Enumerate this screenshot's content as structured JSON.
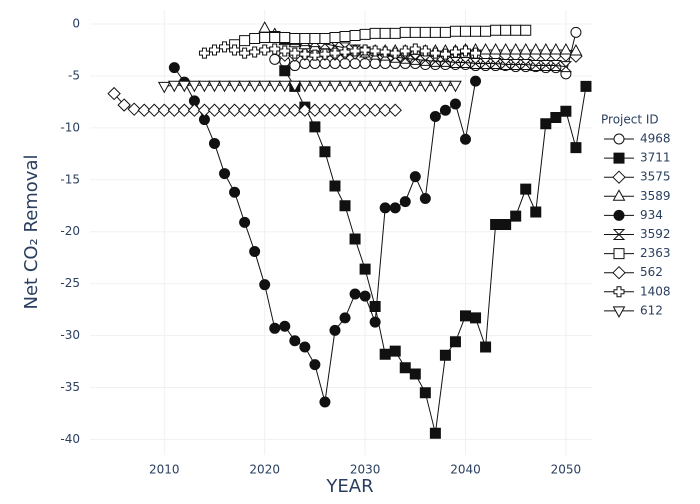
{
  "chart_data": {
    "type": "line",
    "xlabel": "YEAR",
    "ylabel": "Net CO₂ Removal",
    "legend_title": "Project ID",
    "xlim": [
      2002.6,
      2052.6
    ],
    "ylim": [
      -41.5,
      1.35
    ],
    "xticks": [
      2010,
      2020,
      2030,
      2040,
      2050
    ],
    "yticks": [
      0,
      -5,
      -10,
      -15,
      -20,
      -25,
      -30,
      -35,
      -40
    ],
    "grid": true,
    "legend": "right",
    "series": [
      {
        "name": "4968",
        "color": "#111111",
        "marker": "circle-open",
        "x": [
          2021,
          2022,
          2023,
          2024,
          2025,
          2026,
          2027,
          2028,
          2029,
          2030,
          2031,
          2032,
          2033,
          2034,
          2035,
          2036,
          2037,
          2038,
          2039,
          2040,
          2041,
          2042,
          2043,
          2044,
          2045,
          2046,
          2047,
          2048,
          2049,
          2050,
          2051
        ],
        "values": [
          -3.4,
          -3.6,
          -4.0,
          -3.8,
          -3.8,
          -3.8,
          -3.8,
          -3.8,
          -3.8,
          -3.8,
          -3.8,
          -3.8,
          -3.8,
          -3.8,
          -3.8,
          -3.9,
          -3.9,
          -3.9,
          -3.9,
          -3.9,
          -4.0,
          -4.0,
          -4.0,
          -4.0,
          -4.1,
          -4.1,
          -4.1,
          -4.2,
          -4.2,
          -4.8,
          -0.8
        ]
      },
      {
        "name": "3711",
        "color": "#111111",
        "marker": "square",
        "x": [
          2022,
          2023,
          2024,
          2025,
          2026,
          2027,
          2028,
          2029,
          2030,
          2031,
          2032,
          2033,
          2034,
          2035,
          2036,
          2037,
          2038,
          2039,
          2040,
          2041,
          2042,
          2043,
          2044,
          2045,
          2046,
          2047,
          2048,
          2049,
          2050,
          2051,
          2052
        ],
        "values": [
          -4.5,
          -6.0,
          -8.0,
          -9.9,
          -12.3,
          -15.6,
          -17.5,
          -20.7,
          -23.6,
          -27.2,
          -31.8,
          -31.5,
          -33.1,
          -33.7,
          -35.5,
          -39.4,
          -31.9,
          -30.6,
          -28.1,
          -28.3,
          -31.1,
          -19.3,
          -19.3,
          -18.5,
          -15.9,
          -18.1,
          -9.6,
          -9.0,
          -8.4,
          -11.9,
          -6.0
        ]
      },
      {
        "name": "3575",
        "color": "#111111",
        "marker": "diamond-open",
        "x": [
          2022,
          2023,
          2024,
          2025,
          2026,
          2027,
          2028,
          2029,
          2030,
          2031,
          2032,
          2033,
          2034,
          2035,
          2036,
          2037,
          2038,
          2039,
          2040,
          2041,
          2042,
          2043,
          2044,
          2045,
          2046,
          2047,
          2048,
          2049,
          2050,
          2051
        ],
        "values": [
          -3.0,
          -3.0,
          -2.9,
          -2.9,
          -2.9,
          -2.9,
          -2.8,
          -2.8,
          -2.8,
          -2.8,
          -2.9,
          -2.9,
          -2.9,
          -2.9,
          -2.9,
          -2.9,
          -3.0,
          -3.0,
          -3.0,
          -3.0,
          -3.0,
          -3.0,
          -3.0,
          -3.0,
          -3.0,
          -3.0,
          -3.0,
          -3.0,
          -3.0,
          -3.1
        ]
      },
      {
        "name": "3589",
        "color": "#111111",
        "marker": "triangle-up-open",
        "x": [
          2020,
          2021,
          2022,
          2023,
          2024,
          2025,
          2026,
          2027,
          2028,
          2029,
          2030,
          2031,
          2032,
          2033,
          2034,
          2035,
          2036,
          2037,
          2038,
          2039,
          2040,
          2041,
          2042,
          2043,
          2044,
          2045,
          2046,
          2047,
          2048,
          2049,
          2050,
          2051
        ],
        "values": [
          -0.4,
          -1.0,
          -1.6,
          -1.8,
          -2.0,
          -2.2,
          -2.4,
          -2.5,
          -2.6,
          -2.6,
          -2.6,
          -2.6,
          -2.6,
          -2.6,
          -2.6,
          -2.6,
          -2.6,
          -2.6,
          -2.6,
          -2.6,
          -2.5,
          -2.5,
          -2.5,
          -2.5,
          -2.5,
          -2.5,
          -2.5,
          -2.5,
          -2.5,
          -2.5,
          -2.5,
          -2.6
        ]
      },
      {
        "name": "934",
        "color": "#111111",
        "marker": "circle",
        "x": [
          2011,
          2012,
          2013,
          2014,
          2015,
          2016,
          2017,
          2018,
          2019,
          2020,
          2021,
          2022,
          2023,
          2024,
          2025,
          2026,
          2027,
          2028,
          2029,
          2030,
          2031,
          2032,
          2033,
          2034,
          2035,
          2036,
          2037,
          2038,
          2039,
          2040,
          2041
        ],
        "values": [
          -4.2,
          -5.6,
          -7.4,
          -9.2,
          -11.5,
          -14.4,
          -16.2,
          -19.1,
          -21.9,
          -25.1,
          -29.3,
          -29.1,
          -30.5,
          -31.1,
          -32.8,
          -36.4,
          -29.5,
          -28.3,
          -26.0,
          -26.2,
          -28.7,
          -17.7,
          -17.7,
          -17.1,
          -14.7,
          -16.8,
          -8.9,
          -8.3,
          -7.7,
          -11.1,
          -5.5
        ]
      },
      {
        "name": "3592",
        "color": "#111111",
        "marker": "hourglass-open",
        "x": [
          2021,
          2022,
          2023,
          2024,
          2025,
          2026,
          2027,
          2028,
          2029,
          2030,
          2031,
          2032,
          2033,
          2034,
          2035,
          2036,
          2037,
          2038,
          2039,
          2040,
          2041,
          2042,
          2043,
          2044,
          2045,
          2046,
          2047,
          2048,
          2049,
          2050
        ],
        "values": [
          -1.2,
          -1.4,
          -1.5,
          -1.6,
          -1.7,
          -1.9,
          -2.1,
          -2.3,
          -2.5,
          -2.7,
          -2.9,
          -3.0,
          -3.2,
          -3.3,
          -3.4,
          -3.5,
          -3.6,
          -3.6,
          -3.7,
          -3.7,
          -3.8,
          -3.8,
          -3.8,
          -3.9,
          -3.9,
          -3.9,
          -4.0,
          -4.0,
          -4.0,
          -4.1
        ]
      },
      {
        "name": "2363",
        "color": "#111111",
        "marker": "square-open",
        "x": [
          2017,
          2018,
          2019,
          2020,
          2021,
          2022,
          2023,
          2024,
          2025,
          2026,
          2027,
          2028,
          2029,
          2030,
          2031,
          2032,
          2033,
          2034,
          2035,
          2036,
          2037,
          2038,
          2039,
          2040,
          2041,
          2042,
          2043,
          2044,
          2045,
          2046
        ],
        "values": [
          -2.0,
          -1.6,
          -1.4,
          -1.3,
          -1.3,
          -1.3,
          -1.4,
          -1.4,
          -1.4,
          -1.4,
          -1.3,
          -1.2,
          -1.1,
          -1.0,
          -0.9,
          -0.9,
          -0.9,
          -0.8,
          -0.8,
          -0.8,
          -0.8,
          -0.8,
          -0.7,
          -0.7,
          -0.7,
          -0.7,
          -0.6,
          -0.6,
          -0.6,
          -0.6
        ]
      },
      {
        "name": "562",
        "color": "#111111",
        "marker": "diamond-open",
        "x": [
          2005,
          2006,
          2007,
          2008,
          2009,
          2010,
          2011,
          2012,
          2013,
          2014,
          2015,
          2016,
          2017,
          2018,
          2019,
          2020,
          2021,
          2022,
          2023,
          2024,
          2025,
          2026,
          2027,
          2028,
          2029,
          2030,
          2031,
          2032,
          2033
        ],
        "values": [
          -6.7,
          -7.8,
          -8.2,
          -8.3,
          -8.3,
          -8.3,
          -8.3,
          -8.3,
          -8.3,
          -8.3,
          -8.3,
          -8.3,
          -8.3,
          -8.3,
          -8.3,
          -8.3,
          -8.3,
          -8.3,
          -8.3,
          -8.3,
          -8.3,
          -8.3,
          -8.3,
          -8.3,
          -8.3,
          -8.3,
          -8.3,
          -8.3,
          -8.3
        ]
      },
      {
        "name": "1408",
        "color": "#111111",
        "marker": "cross-open",
        "x": [
          2014,
          2015,
          2016,
          2017,
          2018,
          2019,
          2020,
          2021,
          2022,
          2023,
          2024,
          2025,
          2026,
          2027,
          2028,
          2029,
          2030,
          2031,
          2032,
          2033,
          2034,
          2035,
          2036,
          2037,
          2038,
          2039,
          2040,
          2041
        ],
        "values": [
          -2.8,
          -2.5,
          -2.2,
          -2.5,
          -2.8,
          -2.7,
          -2.5,
          -2.4,
          -2.6,
          -2.8,
          -2.9,
          -3.0,
          -2.9,
          -2.8,
          -2.7,
          -2.6,
          -2.5,
          -2.6,
          -2.7,
          -2.8,
          -2.6,
          -2.4,
          -2.6,
          -2.8,
          -2.9,
          -2.7,
          -2.6,
          -2.8
        ]
      },
      {
        "name": "612",
        "color": "#111111",
        "marker": "triangle-down-open",
        "x": [
          2010,
          2011,
          2012,
          2013,
          2014,
          2015,
          2016,
          2017,
          2018,
          2019,
          2020,
          2021,
          2022,
          2023,
          2024,
          2025,
          2026,
          2027,
          2028,
          2029,
          2030,
          2031,
          2032,
          2033,
          2034,
          2035,
          2036,
          2037,
          2038,
          2039
        ],
        "values": [
          -6.0,
          -5.9,
          -5.9,
          -5.9,
          -5.9,
          -5.9,
          -5.9,
          -5.9,
          -5.9,
          -5.9,
          -5.9,
          -5.9,
          -5.9,
          -5.9,
          -5.9,
          -5.9,
          -5.9,
          -5.9,
          -5.9,
          -5.9,
          -5.9,
          -5.9,
          -5.9,
          -5.9,
          -5.9,
          -5.9,
          -5.9,
          -5.9,
          -5.9,
          -5.9
        ]
      }
    ]
  }
}
